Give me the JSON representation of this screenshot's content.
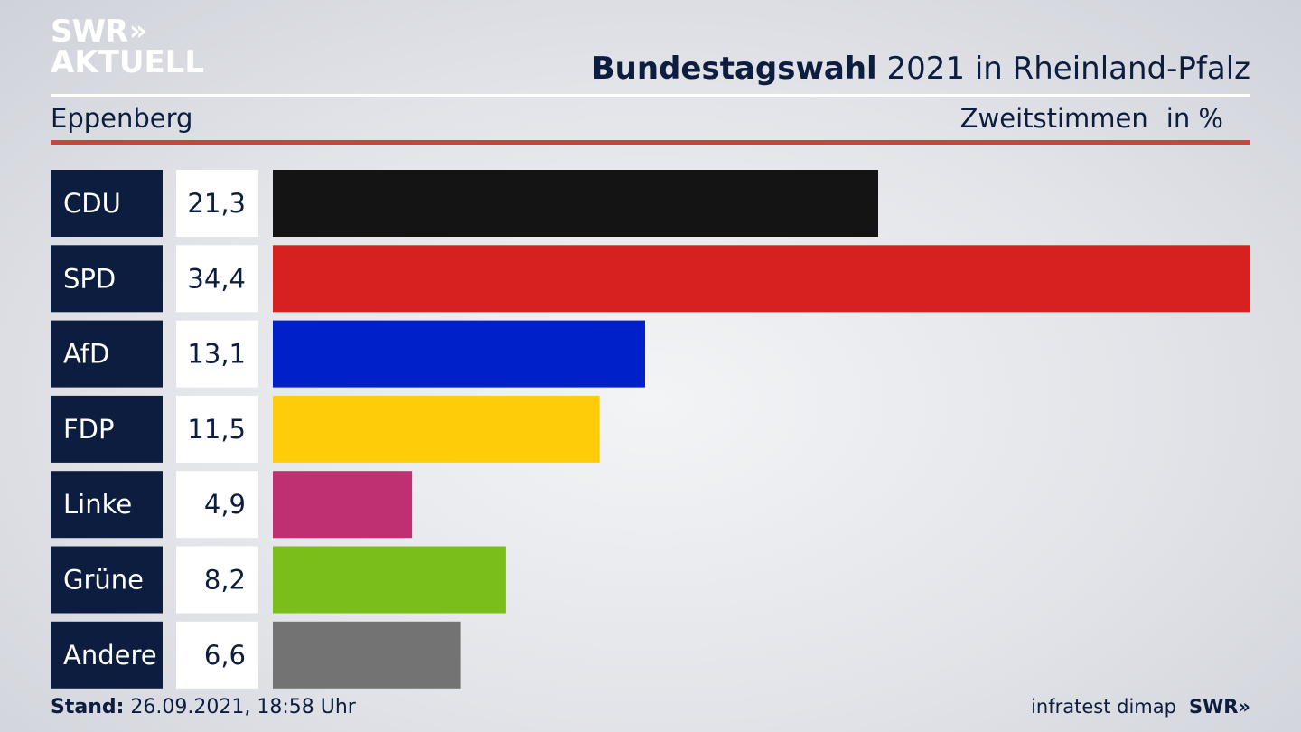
{
  "logo": {
    "line1": "SWR",
    "chevron": "»",
    "line2": "AKTUELL"
  },
  "header": {
    "title_bold": "Bundestagswahl",
    "title_rest": " 2021 in Rheinland-Pfalz",
    "region": "Eppenberg",
    "measure": "Zweitstimmen",
    "unit": "in %"
  },
  "footer": {
    "stand_label": "Stand:",
    "stand_value": " 26.09.2021, 18:58 Uhr",
    "source": "infratest dimap",
    "brand": "SWR»"
  },
  "chart_data": {
    "type": "bar",
    "orientation": "horizontal",
    "categories": [
      "CDU",
      "SPD",
      "AfD",
      "FDP",
      "Linke",
      "Grüne",
      "Andere"
    ],
    "values": [
      21.3,
      34.4,
      13.1,
      11.5,
      4.9,
      8.2,
      6.6
    ],
    "value_labels": [
      "21,3",
      "34,4",
      "13,1",
      "11,5",
      "4,9",
      "8,2",
      "6,6"
    ],
    "colors": [
      "#141414",
      "#d7211f",
      "#0020c9",
      "#ffcc0a",
      "#bf3073",
      "#79be1b",
      "#737373"
    ],
    "label_box_color": "#0c1d3f",
    "value_box_color": "#ffffff",
    "xlim": [
      0,
      34.4
    ]
  }
}
